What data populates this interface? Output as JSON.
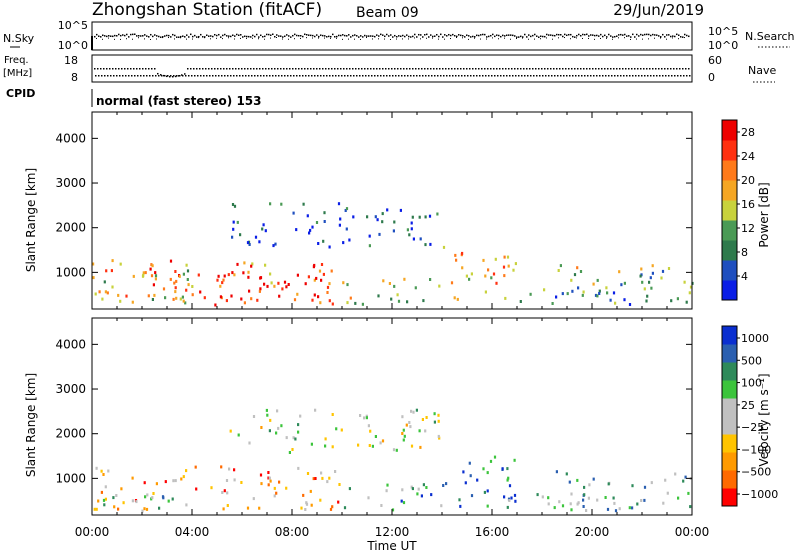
{
  "header": {
    "station": "Zhongshan Station (fitACF)",
    "beam": "Beam 09",
    "date": "29/Jun/2019"
  },
  "aux_panels": {
    "nsky_label": "N.Sky",
    "nsky_top_tick": "10^5",
    "nsky_bottom_tick": "10^0",
    "nsearch_label": "N.Search",
    "nsearch_top_tick": "10^5",
    "nsearch_bottom_tick": "10^0",
    "freq_label_1": "Freq.",
    "freq_label_2": "[MHz]",
    "freq_top_tick": "18",
    "freq_bottom_tick": "8",
    "nave_label": "Nave",
    "nave_top_tick": "60",
    "nave_bottom_tick": "0",
    "cpid_label": "CPID",
    "cpid_text": "normal (fast stereo) 153"
  },
  "colors": {
    "power_scale": [
      "#0a1ee6",
      "#1f4fbf",
      "#2e7a4c",
      "#4a9a55",
      "#c8d23c",
      "#f5a623",
      "#ff7a1a",
      "#ff3010",
      "#ee0000"
    ],
    "velocity_scale": [
      "#ff0000",
      "#ff6a00",
      "#ff9a00",
      "#ffc400",
      "#c0c0c0",
      "#c0c0c0",
      "#3cc43c",
      "#2e8a5a",
      "#2a5fb0",
      "#0a2fd0"
    ]
  },
  "chart_data": [
    {
      "type": "heatmap",
      "panel": "power",
      "xlabel": "",
      "ylabel": "Slant Range [km]",
      "x_ticks": [
        "00:00",
        "04:00",
        "08:00",
        "12:00",
        "16:00",
        "20:00",
        "00:00"
      ],
      "y_ticks": [
        1000,
        2000,
        3000,
        4000
      ],
      "xlim_hours": [
        0,
        24
      ],
      "ylim_km": [
        180,
        4590
      ],
      "colorbar": {
        "label": "Power [dB]",
        "ticks": [
          4,
          8,
          12,
          16,
          20,
          24,
          28
        ],
        "range": [
          0,
          30
        ]
      },
      "regions": [
        {
          "t0": 0.0,
          "t1": 10.0,
          "r0": 300,
          "r1": 1300,
          "level": 0.72
        },
        {
          "t0": 4.5,
          "t1": 9.5,
          "r0": 350,
          "r1": 1000,
          "level": 0.92
        },
        {
          "t0": 0.0,
          "t1": 4.0,
          "r0": 350,
          "r1": 1100,
          "level": 0.55
        },
        {
          "t0": 10.0,
          "t1": 14.0,
          "r0": 300,
          "r1": 900,
          "level": 0.45
        },
        {
          "t0": 14.0,
          "t1": 17.0,
          "r0": 400,
          "r1": 1600,
          "level": 0.62
        },
        {
          "t0": 16.5,
          "t1": 21.5,
          "r0": 300,
          "r1": 700,
          "level": 0.3
        },
        {
          "t0": 18.5,
          "t1": 24.0,
          "r0": 300,
          "r1": 1200,
          "level": 0.42
        },
        {
          "t0": 5.5,
          "t1": 14.0,
          "r0": 1600,
          "r1": 2600,
          "level": 0.15
        }
      ]
    },
    {
      "type": "heatmap",
      "panel": "velocity",
      "xlabel": "Time UT",
      "ylabel": "Slant Range [km]",
      "x_ticks": [
        "00:00",
        "04:00",
        "08:00",
        "12:00",
        "16:00",
        "20:00",
        "00:00"
      ],
      "y_ticks": [
        1000,
        2000,
        3000,
        4000
      ],
      "xlim_hours": [
        0,
        24
      ],
      "ylim_km": [
        180,
        4590
      ],
      "colorbar": {
        "label": "Velocity [m s⁻¹]",
        "ticks": [
          "1000",
          "500",
          "100",
          "25",
          "−25",
          "−100",
          "−500",
          "−1000"
        ]
      },
      "regions": [
        {
          "t0": 0.0,
          "t1": 10.0,
          "r0": 300,
          "r1": 1300,
          "level": 0.3
        },
        {
          "t0": 0.0,
          "t1": 3.5,
          "r0": 300,
          "r1": 900,
          "level": 0.62
        },
        {
          "t0": 10.0,
          "t1": 14.0,
          "r0": 300,
          "r1": 900,
          "level": 0.7
        },
        {
          "t0": 14.0,
          "t1": 17.0,
          "r0": 400,
          "r1": 1600,
          "level": 0.85
        },
        {
          "t0": 16.5,
          "t1": 21.5,
          "r0": 300,
          "r1": 700,
          "level": 0.68
        },
        {
          "t0": 18.5,
          "t1": 24.0,
          "r0": 300,
          "r1": 1200,
          "level": 0.65
        },
        {
          "t0": 5.5,
          "t1": 14.0,
          "r0": 1600,
          "r1": 2600,
          "level": 0.5
        }
      ]
    }
  ]
}
